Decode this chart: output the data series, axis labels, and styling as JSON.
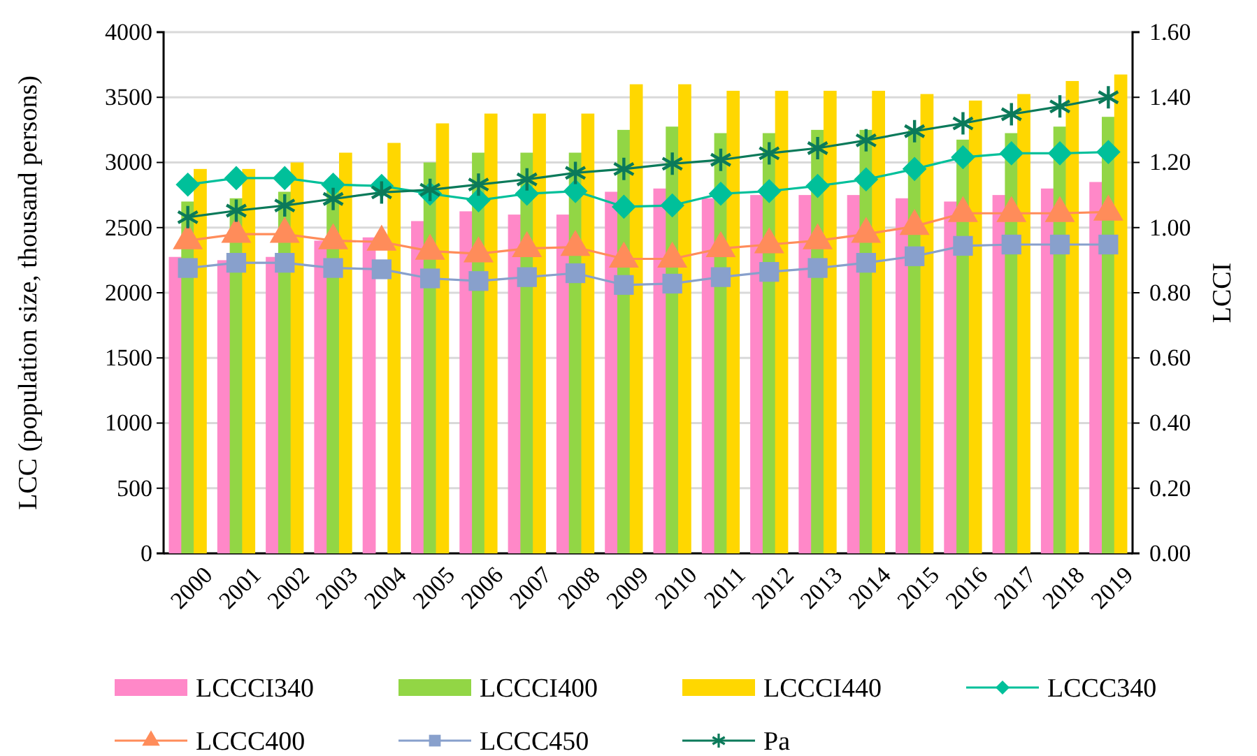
{
  "chart_data": {
    "type": "bar",
    "ylabel": "LCC (population size, thousand persons)",
    "y2label": "LCCI",
    "categories": [
      "2000",
      "2001",
      "2002",
      "2003",
      "2004",
      "2005",
      "2006",
      "2007",
      "2008",
      "2009",
      "2010",
      "2011",
      "2012",
      "2013",
      "2014",
      "2015",
      "2016",
      "2017",
      "2018",
      "2019"
    ],
    "ylim": [
      0,
      4000
    ],
    "yticks": [
      0,
      500,
      1000,
      1500,
      2000,
      2500,
      3000,
      3500,
      4000
    ],
    "y2lim": [
      0,
      1.6
    ],
    "y2ticks": [
      {
        "value": 0,
        "label": "0.00"
      },
      {
        "value": 0.2,
        "label": "0.20"
      },
      {
        "value": 0.4,
        "label": "0.40"
      },
      {
        "value": 0.6,
        "label": "0.60"
      },
      {
        "value": 0.8,
        "label": "0.80"
      },
      {
        "value": 1,
        "label": "1.00"
      },
      {
        "value": 1.2,
        "label": "1.20"
      },
      {
        "value": 1.4,
        "label": "1.40"
      },
      {
        "value": 1.6,
        "label": "1.60"
      }
    ],
    "grid": "y",
    "legend": "bottom",
    "series": [
      {
        "name": "LCCCI340",
        "axis": "y2",
        "color": "#ff88c8",
        "values": [
          0.91,
          0.9,
          0.91,
          0.96,
          0.97,
          1.02,
          1.05,
          1.04,
          1.04,
          1.11,
          1.12,
          1.09,
          1.1,
          1.1,
          1.1,
          1.09,
          1.08,
          1.1,
          1.12,
          1.14
        ]
      },
      {
        "name": "LCCCI400",
        "axis": "y2",
        "color": "#92d645",
        "values": [
          1.08,
          1.09,
          1.11,
          1.12,
          null,
          1.2,
          1.23,
          1.23,
          1.23,
          1.3,
          1.31,
          1.29,
          1.29,
          1.3,
          1.3,
          1.3,
          1.27,
          1.29,
          1.31,
          1.34
        ]
      },
      {
        "name": "LCCCI440",
        "axis": "y2",
        "color": "#ffd700",
        "values": [
          1.18,
          1.18,
          1.2,
          1.23,
          1.26,
          1.32,
          1.35,
          1.35,
          1.35,
          1.44,
          1.44,
          1.42,
          1.42,
          1.42,
          1.42,
          1.41,
          1.39,
          1.41,
          1.45,
          1.47
        ]
      },
      {
        "name": "LCCC340",
        "type": "line",
        "axis": "y",
        "marker": "diamond",
        "color": "#00c09a",
        "values": [
          2830,
          2880,
          2880,
          2830,
          2820,
          2760,
          2710,
          2760,
          2780,
          2660,
          2670,
          2760,
          2780,
          2820,
          2870,
          2950,
          3040,
          3070,
          3070,
          3080
        ]
      },
      {
        "name": "LCCC400",
        "type": "line",
        "axis": "y",
        "marker": "triangle",
        "color": "#ff8c5a",
        "values": [
          2400,
          2450,
          2450,
          2400,
          2390,
          2320,
          2300,
          2340,
          2350,
          2260,
          2260,
          2340,
          2370,
          2400,
          2450,
          2510,
          2610,
          2610,
          2610,
          2620
        ]
      },
      {
        "name": "LCCC450",
        "type": "line",
        "axis": "y",
        "marker": "square",
        "color": "#88a0cc",
        "values": [
          2190,
          2230,
          2230,
          2190,
          2180,
          2110,
          2090,
          2120,
          2150,
          2060,
          2070,
          2120,
          2160,
          2190,
          2230,
          2280,
          2360,
          2370,
          2370,
          2370
        ]
      },
      {
        "name": "Pa",
        "type": "line",
        "axis": "y",
        "marker": "cross",
        "color": "#0b7a5a",
        "values": [
          2580,
          2630,
          2670,
          2720,
          2770,
          2790,
          2830,
          2870,
          2920,
          2950,
          2990,
          3020,
          3070,
          3110,
          3170,
          3240,
          3300,
          3370,
          3430,
          3500
        ]
      }
    ]
  }
}
